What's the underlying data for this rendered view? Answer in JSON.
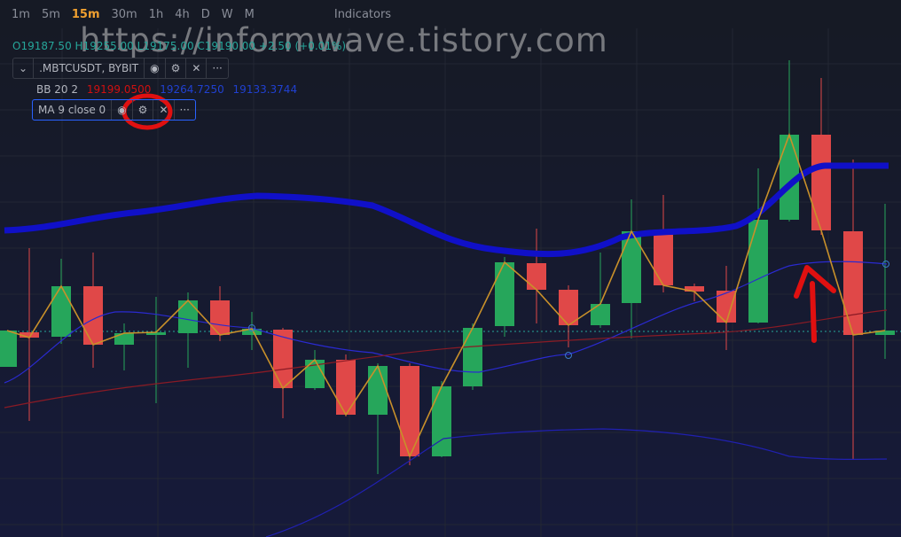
{
  "toolbar": {
    "intervals": [
      "1m",
      "5m",
      "15m",
      "30m",
      "1h",
      "4h",
      "D",
      "W",
      "M"
    ],
    "active_interval": "15m",
    "indicators": "Indicators"
  },
  "watermark": "https://informwave.tistory.com",
  "legend": {
    "open": "O19187.50",
    "high": "H19255.00",
    "low": "L19175.00",
    "close": "C19190.00",
    "change": "+2.50",
    "change_pct": "(+0.01%)",
    "symbol": ".MBTCUSDT, BYBIT"
  },
  "indicators": [
    {
      "name": "BB 20 2",
      "values": [
        "19199.0500",
        "19264.7250",
        "19133.3744"
      ]
    },
    {
      "name": "MA 9 close 0"
    }
  ]
}
